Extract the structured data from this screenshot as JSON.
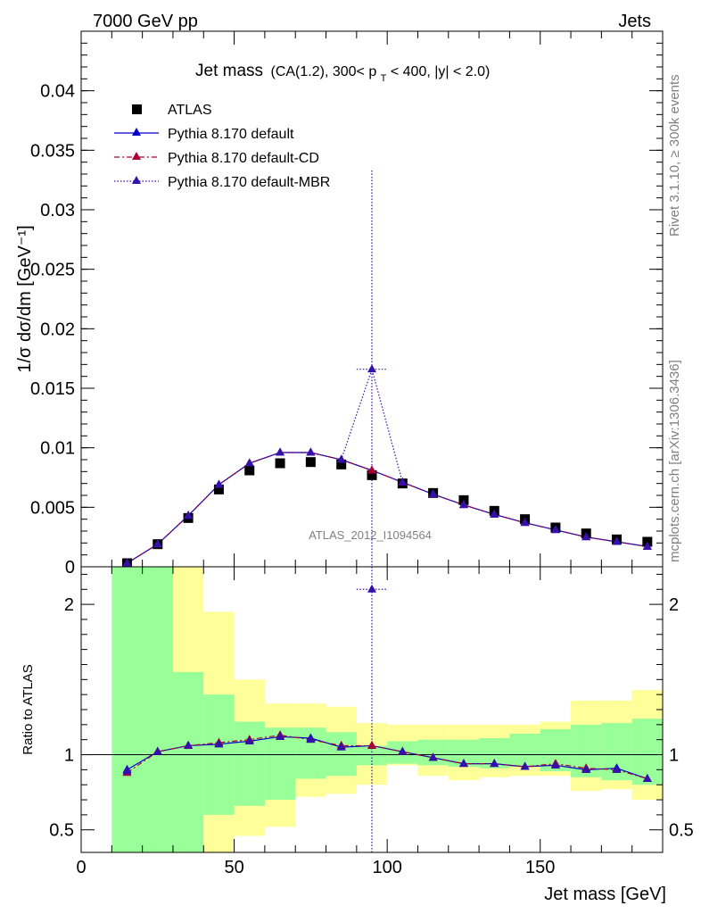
{
  "header": {
    "left": "7000 GeV pp",
    "right": "Jets"
  },
  "side_labels": {
    "rivet": "Rivet 3.1.10, ≥ 300k events",
    "mcplots": "mcplots.cern.ch [arXiv:1306.3436]"
  },
  "chart_data": [
    {
      "type": "scatter",
      "panel": "main",
      "title_main": "Jet mass",
      "title_sub_a": "(CA(1.2), 300< p",
      "title_sub_sub": "T",
      "title_sub_b": " < 400, |y| < 2.0)",
      "watermark": "ATLAS_2012_I1094564",
      "ylabel": "1/σ dσ/dm [GeV⁻¹]",
      "xlabel": "Jet mass [GeV]",
      "xlim": [
        0,
        190
      ],
      "ylim": [
        0,
        0.045
      ],
      "y_ticks": [
        {
          "v": 0,
          "label": "0"
        },
        {
          "v": 0.005,
          "label": "0.005"
        },
        {
          "v": 0.01,
          "label": "0.01"
        },
        {
          "v": 0.015,
          "label": "0.015"
        },
        {
          "v": 0.02,
          "label": "0.02"
        },
        {
          "v": 0.025,
          "label": "0.025"
        },
        {
          "v": 0.03,
          "label": "0.03"
        },
        {
          "v": 0.035,
          "label": "0.035"
        },
        {
          "v": 0.04,
          "label": "0.04"
        }
      ],
      "x": [
        15,
        25,
        35,
        45,
        55,
        65,
        75,
        85,
        95,
        105,
        115,
        125,
        135,
        145,
        155,
        165,
        175,
        185
      ],
      "legend": [
        {
          "label": "ATLAS",
          "marker": "square",
          "color": "#000000"
        },
        {
          "label": "Pythia 8.170 default",
          "marker": "triangle",
          "color": "#0000cc",
          "dash": "solid"
        },
        {
          "label": "Pythia 8.170 default-CD",
          "marker": "triangle",
          "color": "#aa0033",
          "dash": "dashdot"
        },
        {
          "label": "Pythia 8.170 default-MBR",
          "marker": "triangle",
          "color": "#3311aa",
          "dash": "dotted"
        }
      ],
      "series": [
        {
          "name": "ATLAS",
          "values": [
            0.0003,
            0.0019,
            0.0041,
            0.0065,
            0.0081,
            0.0087,
            0.0088,
            0.0086,
            0.0077,
            0.007,
            0.0062,
            0.0056,
            0.0047,
            0.004,
            0.0033,
            0.0028,
            0.0023,
            0.0021
          ]
        },
        {
          "name": "Pythia 8.170 default",
          "values": [
            0.0003,
            0.0019,
            0.0043,
            0.0069,
            0.0087,
            0.0096,
            0.0096,
            0.009,
            0.0081,
            0.0071,
            0.0061,
            0.0052,
            0.0044,
            0.0037,
            0.0031,
            0.0025,
            0.0021,
            0.0017
          ]
        },
        {
          "name": "Pythia 8.170 default-CD",
          "values": [
            0.0003,
            0.0019,
            0.0043,
            0.0069,
            0.0087,
            0.0096,
            0.0096,
            0.009,
            0.0081,
            0.0071,
            0.0061,
            0.0052,
            0.0044,
            0.0037,
            0.0031,
            0.0025,
            0.0021,
            0.0017
          ]
        },
        {
          "name": "Pythia 8.170 default-MBR",
          "values": [
            0.0003,
            0.0019,
            0.0043,
            0.0069,
            0.0087,
            0.0096,
            0.0096,
            0.009,
            0.0166,
            0.0071,
            0.0061,
            0.0052,
            0.0044,
            0.0037,
            0.0031,
            0.0025,
            0.0021,
            0.0017
          ]
        }
      ],
      "mbr_outlier": {
        "x": 95,
        "y": 0.0166,
        "err_low": 0,
        "err_high": 0.0333,
        "xerr": 5
      }
    },
    {
      "type": "scatter",
      "panel": "ratio",
      "ylabel": "Ratio to ATLAS",
      "xlim": [
        0,
        190
      ],
      "ylim": [
        0.35,
        2.25
      ],
      "x_ticks": [
        {
          "v": 0,
          "label": "0"
        },
        {
          "v": 50,
          "label": "50"
        },
        {
          "v": 100,
          "label": "100"
        },
        {
          "v": 150,
          "label": "150"
        }
      ],
      "y_ticks": [
        {
          "v": 0.5,
          "label": "0.5"
        },
        {
          "v": 1,
          "label": "1"
        },
        {
          "v": 2,
          "label": "2"
        }
      ],
      "band_edges": [
        10,
        20,
        30,
        40,
        50,
        60,
        70,
        80,
        90,
        100,
        110,
        120,
        130,
        140,
        150,
        160,
        170,
        180,
        190
      ],
      "band_green_low": [
        0.35,
        0.35,
        0.35,
        0.6,
        0.66,
        0.7,
        0.84,
        0.86,
        0.93,
        0.94,
        0.93,
        0.92,
        0.91,
        0.92,
        0.89,
        0.85,
        0.83,
        0.8
      ],
      "band_green_high": [
        2.25,
        2.25,
        1.55,
        1.4,
        1.22,
        1.18,
        1.18,
        1.15,
        1.06,
        1.09,
        1.1,
        1.1,
        1.11,
        1.14,
        1.17,
        1.2,
        1.21,
        1.24
      ],
      "band_yellow_low": [
        0.35,
        0.35,
        0.35,
        0.35,
        0.46,
        0.52,
        0.72,
        0.74,
        0.8,
        0.93,
        0.86,
        0.83,
        0.85,
        0.86,
        0.86,
        0.76,
        0.77,
        0.7
      ],
      "band_yellow_high": [
        2.25,
        2.25,
        2.25,
        1.95,
        1.5,
        1.34,
        1.34,
        1.32,
        1.21,
        1.2,
        1.2,
        1.2,
        1.2,
        1.2,
        1.22,
        1.36,
        1.36,
        1.43
      ],
      "series": [
        {
          "name": "Pythia 8.170 default",
          "values": [
            0.9,
            1.02,
            1.06,
            1.07,
            1.09,
            1.12,
            1.11,
            1.05,
            1.06,
            1.02,
            0.98,
            0.94,
            0.94,
            0.92,
            0.93,
            0.9,
            0.91,
            0.84
          ]
        },
        {
          "name": "Pythia 8.170 default-CD",
          "values": [
            0.88,
            1.02,
            1.06,
            1.08,
            1.1,
            1.13,
            1.1,
            1.06,
            1.06,
            1.02,
            0.98,
            0.94,
            0.94,
            0.92,
            0.94,
            0.91,
            0.9,
            0.84
          ]
        },
        {
          "name": "Pythia 8.170 default-MBR",
          "values": [
            0.89,
            1.02,
            1.06,
            1.07,
            1.09,
            1.12,
            1.1,
            1.05,
            2.1,
            1.02,
            0.98,
            0.94,
            0.94,
            0.92,
            0.93,
            0.9,
            0.9,
            0.84
          ]
        }
      ]
    }
  ]
}
